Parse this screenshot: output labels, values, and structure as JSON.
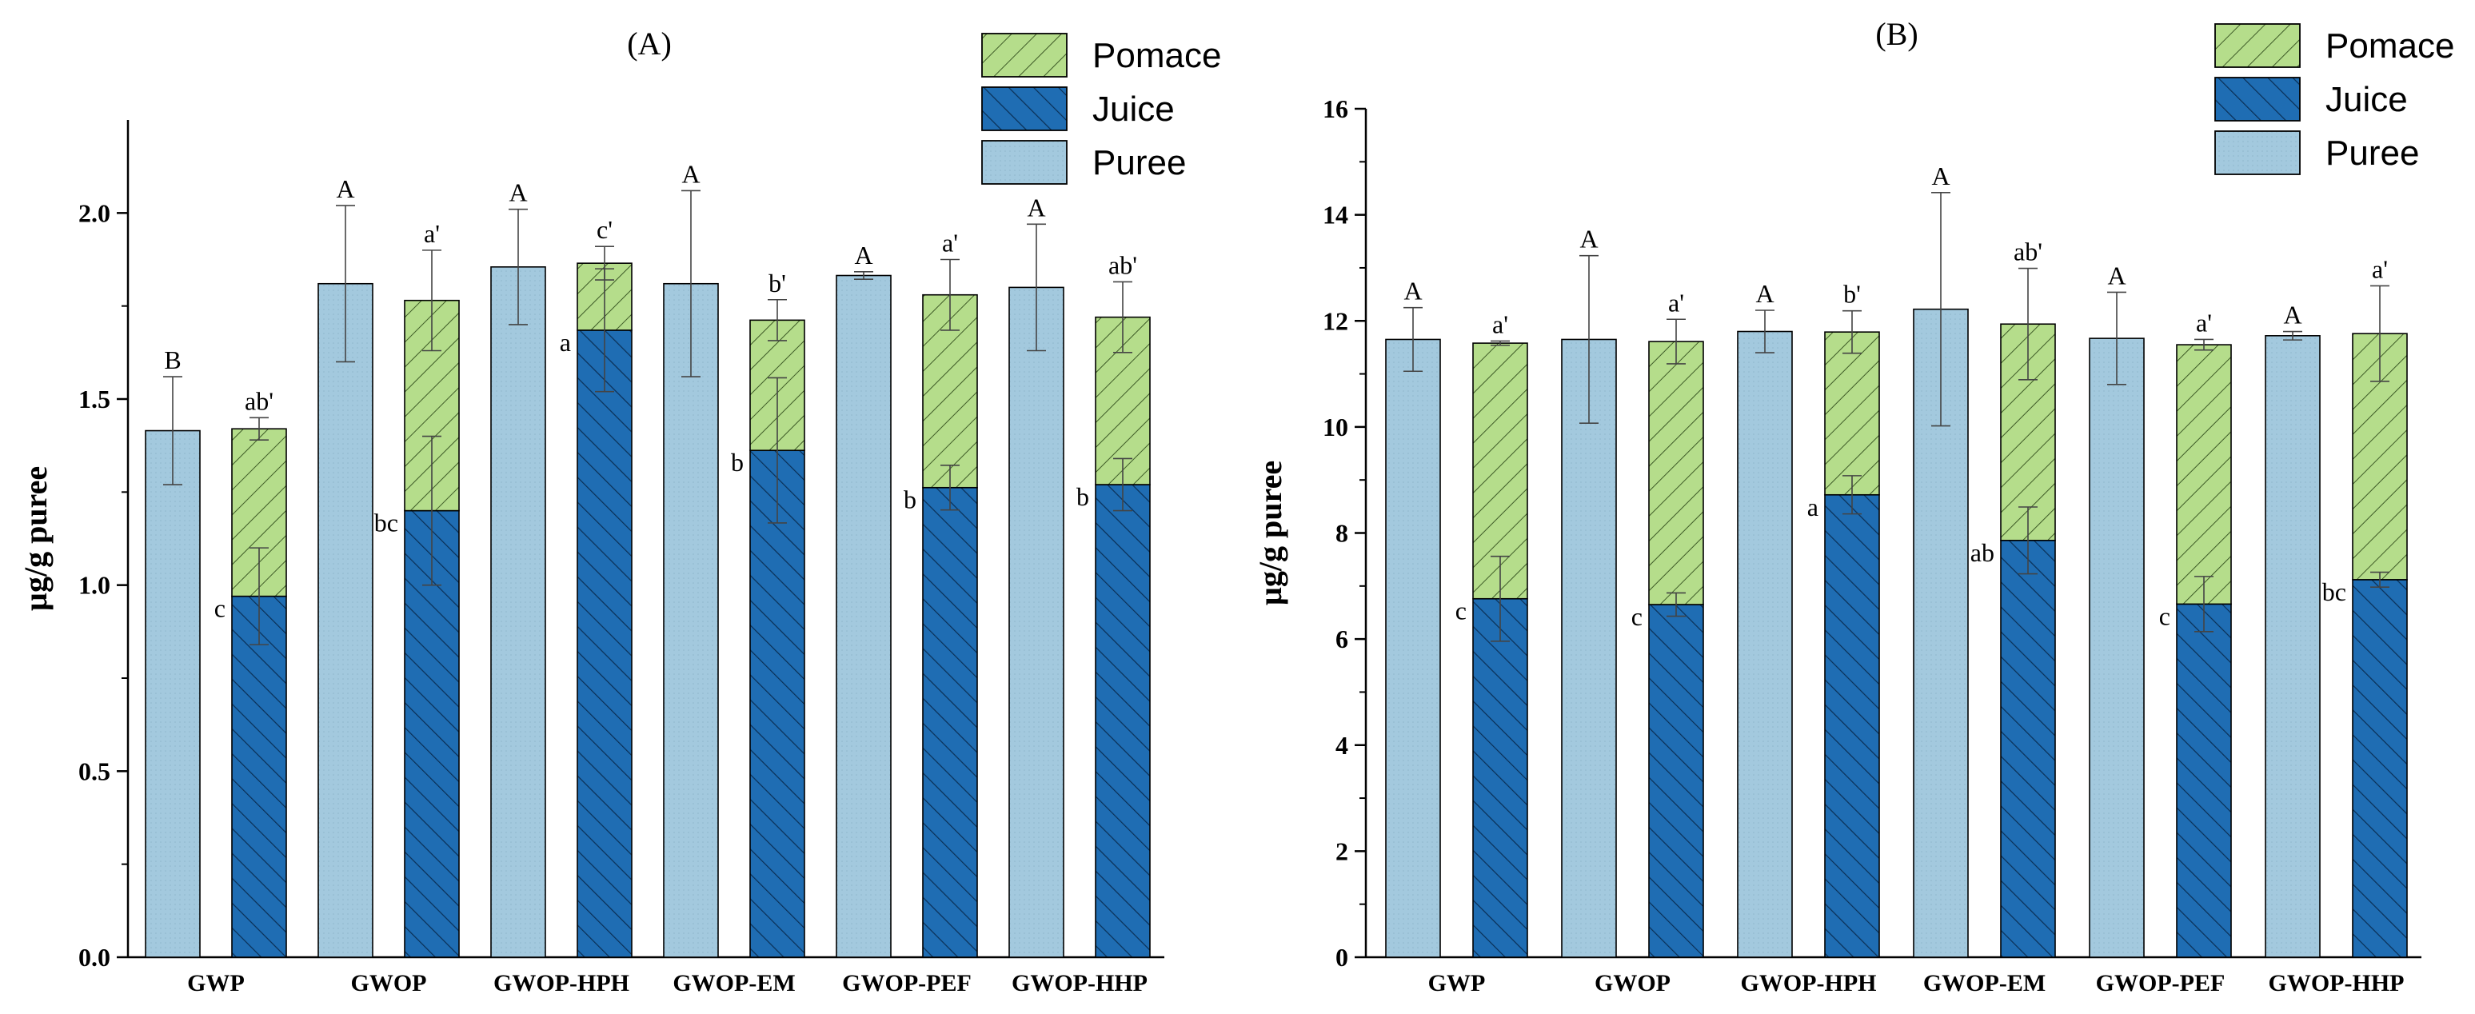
{
  "colors": {
    "puree": "#a3c9de",
    "juice": "#1f6db3",
    "pomace": "#b5dd8b",
    "axis": "#000000",
    "outline": "#000000"
  },
  "chart_data": [
    {
      "type": "bar",
      "title": "(A)",
      "ylabel": "µg/g puree",
      "xlabel": "",
      "ylim": [
        0,
        2.25
      ],
      "yticks": [
        0.0,
        0.5,
        1.0,
        1.5,
        2.0
      ],
      "ytick_labels": [
        "0.0",
        "0.5",
        "1.0",
        "1.5",
        "2.0"
      ],
      "grid": false,
      "legend": {
        "position": "top-right",
        "entries": [
          "Pomace",
          "Juice",
          "Puree"
        ]
      },
      "categories": [
        "GWP",
        "GWOP",
        "GWOP-HPH",
        "GWOP-EM",
        "GWOP-PEF",
        "GWOP-HHP"
      ],
      "series": [
        {
          "name": "Puree",
          "values": [
            1.415,
            1.81,
            1.855,
            1.81,
            1.832,
            1.8
          ],
          "error": [
            0.145,
            0.21,
            0.155,
            0.25,
            0.01,
            0.17
          ],
          "labels": [
            "B",
            "A",
            "A",
            "A",
            "A",
            "A"
          ]
        },
        {
          "name": "Juice",
          "values": [
            0.97,
            1.2,
            1.685,
            1.362,
            1.262,
            1.27
          ],
          "error": [
            0.13,
            0.2,
            0.165,
            0.195,
            0.06,
            0.07
          ],
          "labels": [
            "c",
            "bc",
            "a",
            "b",
            "b",
            "b"
          ]
        },
        {
          "name": "Pomace",
          "values": [
            0.45,
            0.565,
            0.18,
            0.35,
            0.518,
            0.45
          ],
          "totals": [
            1.42,
            1.765,
            1.865,
            1.712,
            1.78,
            1.72
          ],
          "error": [
            0.03,
            0.135,
            0.045,
            0.055,
            0.095,
            0.095
          ],
          "labels": [
            "ab'",
            "a'",
            "c'",
            "b'",
            "a'",
            "ab'"
          ]
        }
      ]
    },
    {
      "type": "bar",
      "title": "(B)",
      "ylabel": "µg/g puree",
      "xlabel": "",
      "ylim": [
        0,
        16
      ],
      "yticks": [
        0,
        2,
        4,
        6,
        8,
        10,
        12,
        14,
        16
      ],
      "ytick_labels": [
        "0",
        "2",
        "4",
        "6",
        "8",
        "10",
        "12",
        "14",
        "16"
      ],
      "grid": false,
      "legend": {
        "position": "top-right",
        "entries": [
          "Pomace",
          "Juice",
          "Puree"
        ]
      },
      "categories": [
        "GWP",
        "GWOP",
        "GWOP-HPH",
        "GWOP-EM",
        "GWOP-PEF",
        "GWOP-HHP"
      ],
      "series": [
        {
          "name": "Puree",
          "values": [
            11.65,
            11.65,
            11.8,
            12.22,
            11.67,
            11.72
          ],
          "error": [
            0.6,
            1.58,
            0.4,
            2.2,
            0.87,
            0.08
          ],
          "labels": [
            "A",
            "A",
            "A",
            "A",
            "A",
            "A"
          ]
        },
        {
          "name": "Juice",
          "values": [
            6.76,
            6.65,
            8.72,
            7.86,
            6.66,
            7.12
          ],
          "error": [
            0.8,
            0.22,
            0.36,
            0.63,
            0.52,
            0.14
          ],
          "labels": [
            "c",
            "c",
            "a",
            "ab",
            "c",
            "bc"
          ]
        },
        {
          "name": "Pomace",
          "values": [
            4.82,
            4.96,
            3.07,
            4.08,
            4.89,
            4.64
          ],
          "totals": [
            11.58,
            11.61,
            11.79,
            11.94,
            11.55,
            11.76
          ],
          "error": [
            0.04,
            0.42,
            0.4,
            1.05,
            0.1,
            0.9
          ],
          "labels": [
            "a'",
            "a'",
            "b'",
            "ab'",
            "a'",
            "a'"
          ]
        }
      ]
    }
  ]
}
